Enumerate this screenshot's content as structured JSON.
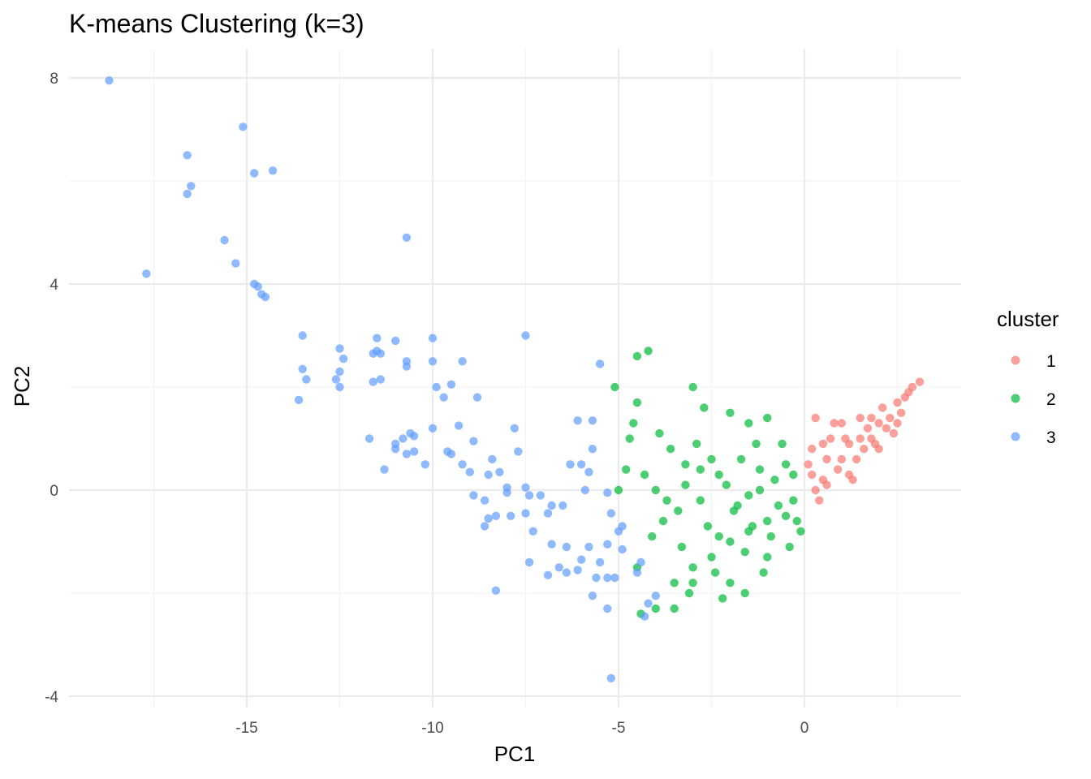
{
  "chart_data": {
    "type": "scatter",
    "title": "K-means Clustering (k=3)",
    "xlabel": "PC1",
    "ylabel": "PC2",
    "xlim": [
      -19.2,
      8.4
    ],
    "ylim": [
      -4.3,
      8.5
    ],
    "x_ticks": [
      -15,
      -10,
      -5,
      0
    ],
    "x_tick_labels": [
      "-15",
      "-10",
      "-5",
      "0"
    ],
    "y_ticks": [
      -4,
      0,
      4,
      8
    ],
    "y_tick_labels": [
      "-4",
      "0",
      "4",
      "8"
    ],
    "grid": true,
    "legend": {
      "title": "cluster",
      "position": "right"
    },
    "series": [
      {
        "name": "1",
        "color": "#F8766D",
        "points": [
          [
            0.5,
            0.2
          ],
          [
            1.0,
            0.6
          ],
          [
            1.5,
            1.0
          ],
          [
            2.0,
            1.3
          ],
          [
            2.5,
            1.7
          ],
          [
            2.9,
            2.0
          ],
          [
            3.1,
            2.1
          ],
          [
            0.8,
            1.3
          ],
          [
            1.8,
            1.4
          ],
          [
            0.2,
            0.8
          ],
          [
            0.6,
            0.1
          ],
          [
            1.2,
            0.3
          ],
          [
            1.6,
            0.8
          ],
          [
            2.2,
            1.2
          ],
          [
            2.6,
            1.5
          ],
          [
            0.3,
            1.4
          ],
          [
            1.1,
            1.0
          ],
          [
            0.9,
            0.4
          ],
          [
            1.4,
            0.6
          ],
          [
            2.1,
            1.6
          ],
          [
            2.7,
            1.8
          ],
          [
            0.4,
            -0.2
          ],
          [
            1.3,
            0.2
          ],
          [
            0.7,
            1.0
          ],
          [
            1.9,
            0.9
          ],
          [
            2.4,
            1.1
          ],
          [
            0.2,
            0.3
          ],
          [
            1.7,
            1.2
          ],
          [
            2.8,
            1.9
          ],
          [
            0.5,
            0.9
          ],
          [
            1.0,
            1.3
          ],
          [
            1.5,
            1.4
          ],
          [
            0.1,
            0.5
          ],
          [
            2.3,
            1.4
          ],
          [
            0.6,
            0.6
          ],
          [
            1.8,
            1.0
          ],
          [
            2.0,
            0.8
          ],
          [
            1.2,
            0.9
          ],
          [
            0.3,
            0.0
          ],
          [
            2.5,
            1.3
          ]
        ]
      },
      {
        "name": "2",
        "color": "#00BA38",
        "points": [
          [
            -0.5,
            -0.5
          ],
          [
            -1.0,
            -0.6
          ],
          [
            -1.5,
            -0.8
          ],
          [
            -2.0,
            -1.0
          ],
          [
            -2.5,
            -1.3
          ],
          [
            -3.0,
            -1.5
          ],
          [
            -3.5,
            -1.8
          ],
          [
            -4.2,
            2.7
          ],
          [
            -4.5,
            2.6
          ],
          [
            -5.1,
            2.0
          ],
          [
            -4.5,
            1.7
          ],
          [
            -3.0,
            2.0
          ],
          [
            -2.0,
            1.5
          ],
          [
            -1.5,
            1.3
          ],
          [
            -1.0,
            1.4
          ],
          [
            -3.5,
            -2.3
          ],
          [
            -4.0,
            -2.3
          ],
          [
            -4.5,
            -1.5
          ],
          [
            -5.0,
            0.0
          ],
          [
            -4.8,
            0.4
          ],
          [
            -4.0,
            0.0
          ],
          [
            -3.2,
            0.5
          ],
          [
            -2.8,
            -0.2
          ],
          [
            -2.3,
            0.3
          ],
          [
            -1.8,
            -0.3
          ],
          [
            -1.2,
            0.0
          ],
          [
            -0.8,
            0.2
          ],
          [
            -0.3,
            -0.2
          ],
          [
            -2.2,
            -2.1
          ],
          [
            -3.0,
            -1.8
          ],
          [
            -1.6,
            -1.2
          ],
          [
            -2.6,
            -0.7
          ],
          [
            -3.8,
            -0.6
          ],
          [
            -4.3,
            0.3
          ],
          [
            -3.6,
            0.8
          ],
          [
            -2.9,
            0.9
          ],
          [
            -0.5,
            0.5
          ],
          [
            -1.1,
            -1.6
          ],
          [
            -0.4,
            -1.1
          ],
          [
            -0.2,
            -0.6
          ],
          [
            -1.7,
            0.6
          ],
          [
            -2.4,
            -1.6
          ],
          [
            -3.3,
            -1.1
          ],
          [
            -4.1,
            -0.9
          ],
          [
            -4.6,
            1.3
          ],
          [
            -3.9,
            1.1
          ],
          [
            -2.7,
            1.6
          ],
          [
            -1.3,
            0.9
          ],
          [
            -0.9,
            -0.9
          ],
          [
            -1.9,
            -0.4
          ],
          [
            -2.1,
            0.1
          ],
          [
            -3.4,
            -0.4
          ],
          [
            -3.7,
            -0.2
          ],
          [
            -2.5,
            0.6
          ],
          [
            -1.4,
            -0.7
          ],
          [
            -0.7,
            -0.3
          ],
          [
            -0.1,
            -0.8
          ],
          [
            -1.6,
            -2.0
          ],
          [
            -4.4,
            -2.4
          ],
          [
            -3.1,
            -2.0
          ],
          [
            -2.0,
            -1.8
          ],
          [
            -4.7,
            1.0
          ],
          [
            -1.2,
            0.4
          ],
          [
            -0.6,
            0.9
          ],
          [
            -2.3,
            -0.9
          ],
          [
            -3.2,
            0.1
          ],
          [
            -2.8,
            0.4
          ],
          [
            -1.0,
            -1.3
          ],
          [
            -0.3,
            0.3
          ],
          [
            -1.5,
            -0.1
          ]
        ]
      },
      {
        "name": "3",
        "color": "#619CFF",
        "points": [
          [
            -18.7,
            7.95
          ],
          [
            -17.7,
            4.2
          ],
          [
            -16.6,
            6.5
          ],
          [
            -16.6,
            5.75
          ],
          [
            -16.5,
            5.9
          ],
          [
            -15.6,
            4.85
          ],
          [
            -15.3,
            4.4
          ],
          [
            -15.1,
            7.05
          ],
          [
            -14.8,
            6.15
          ],
          [
            -14.8,
            4.0
          ],
          [
            -14.7,
            3.95
          ],
          [
            -14.6,
            3.8
          ],
          [
            -14.5,
            3.75
          ],
          [
            -14.3,
            6.2
          ],
          [
            -13.5,
            3.0
          ],
          [
            -13.5,
            2.35
          ],
          [
            -13.6,
            1.75
          ],
          [
            -13.4,
            2.15
          ],
          [
            -12.6,
            2.15
          ],
          [
            -12.5,
            2.3
          ],
          [
            -12.5,
            2.75
          ],
          [
            -12.4,
            2.55
          ],
          [
            -12.5,
            2.0
          ],
          [
            -11.5,
            2.95
          ],
          [
            -11.5,
            2.7
          ],
          [
            -11.6,
            2.65
          ],
          [
            -11.4,
            2.65
          ],
          [
            -11.6,
            2.1
          ],
          [
            -11.4,
            2.15
          ],
          [
            -11.0,
            2.9
          ],
          [
            -10.7,
            2.5
          ],
          [
            -10.7,
            2.4
          ],
          [
            -10.0,
            2.95
          ],
          [
            -10.0,
            2.5
          ],
          [
            -9.2,
            2.5
          ],
          [
            -10.7,
            4.9
          ],
          [
            -9.9,
            2.0
          ],
          [
            -9.7,
            1.8
          ],
          [
            -9.5,
            2.05
          ],
          [
            -8.8,
            1.8
          ],
          [
            -11.7,
            1.0
          ],
          [
            -11.0,
            0.8
          ],
          [
            -11.0,
            0.9
          ],
          [
            -10.8,
            1.0
          ],
          [
            -10.6,
            1.1
          ],
          [
            -10.5,
            1.05
          ],
          [
            -10.5,
            0.75
          ],
          [
            -10.0,
            1.2
          ],
          [
            -9.6,
            0.75
          ],
          [
            -9.5,
            0.7
          ],
          [
            -9.3,
            1.25
          ],
          [
            -9.2,
            0.5
          ],
          [
            -9.0,
            0.35
          ],
          [
            -8.9,
            0.95
          ],
          [
            -10.2,
            0.5
          ],
          [
            -11.3,
            0.4
          ],
          [
            -10.7,
            0.7
          ],
          [
            -8.5,
            0.3
          ],
          [
            -8.4,
            0.6
          ],
          [
            -8.2,
            0.35
          ],
          [
            -8.0,
            0.05
          ],
          [
            -7.8,
            1.2
          ],
          [
            -7.7,
            0.75
          ],
          [
            -7.5,
            0.05
          ],
          [
            -7.4,
            -0.1
          ],
          [
            -7.1,
            -0.1
          ],
          [
            -6.9,
            -0.45
          ],
          [
            -6.8,
            -0.3
          ],
          [
            -6.5,
            -0.3
          ],
          [
            -6.3,
            0.5
          ],
          [
            -6.0,
            0.5
          ],
          [
            -5.9,
            0.0
          ],
          [
            -5.8,
            0.35
          ],
          [
            -6.1,
            1.35
          ],
          [
            -5.7,
            1.35
          ],
          [
            -5.7,
            0.8
          ],
          [
            -7.5,
            3.0
          ],
          [
            -5.5,
            2.45
          ],
          [
            -8.0,
            -0.05
          ],
          [
            -8.3,
            -0.5
          ],
          [
            -8.6,
            -0.7
          ],
          [
            -8.5,
            -0.55
          ],
          [
            -8.6,
            -0.2
          ],
          [
            -8.9,
            -0.1
          ],
          [
            -7.9,
            -0.5
          ],
          [
            -7.5,
            -0.45
          ],
          [
            -7.3,
            -0.8
          ],
          [
            -7.4,
            -1.4
          ],
          [
            -6.8,
            -1.05
          ],
          [
            -6.6,
            -1.5
          ],
          [
            -6.4,
            -1.1
          ],
          [
            -6.0,
            -1.35
          ],
          [
            -5.8,
            -1.1
          ],
          [
            -5.3,
            -1.05
          ],
          [
            -5.0,
            -0.8
          ],
          [
            -4.9,
            -0.7
          ],
          [
            -5.5,
            -1.4
          ],
          [
            -5.3,
            -1.7
          ],
          [
            -5.1,
            -1.7
          ],
          [
            -4.9,
            -1.15
          ],
          [
            -4.4,
            -1.4
          ],
          [
            -4.5,
            -1.6
          ],
          [
            -4.2,
            -2.2
          ],
          [
            -4.0,
            -2.05
          ],
          [
            -4.3,
            -2.45
          ],
          [
            -5.3,
            -2.3
          ],
          [
            -5.6,
            -1.7
          ],
          [
            -5.7,
            -2.05
          ],
          [
            -6.1,
            -1.55
          ],
          [
            -6.4,
            -1.6
          ],
          [
            -6.9,
            -1.65
          ],
          [
            -8.3,
            -1.95
          ],
          [
            -5.2,
            -3.65
          ],
          [
            -5.3,
            -0.05
          ],
          [
            -5.2,
            -0.45
          ]
        ]
      }
    ]
  }
}
